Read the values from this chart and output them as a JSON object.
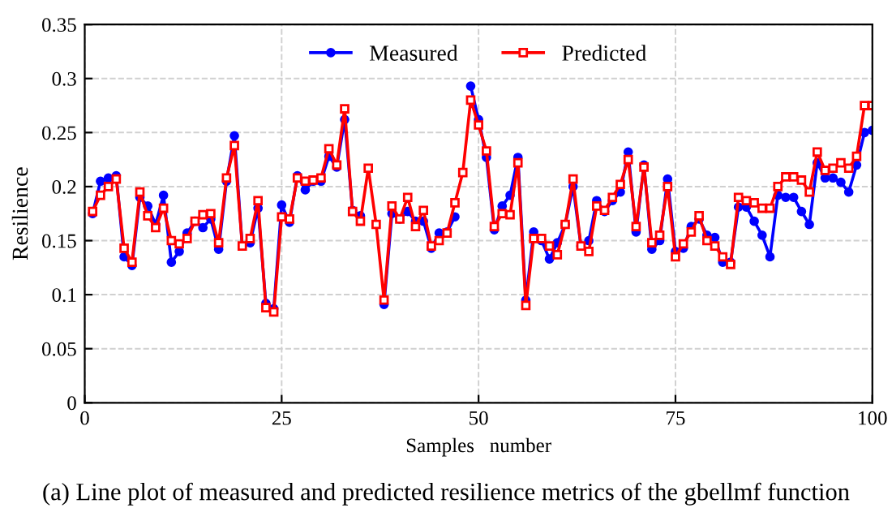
{
  "chart_data": {
    "type": "line",
    "xlabel": "Samples   number",
    "ylabel": "Resilience",
    "x": [
      1,
      2,
      3,
      4,
      5,
      6,
      7,
      8,
      9,
      10,
      11,
      12,
      13,
      14,
      15,
      16,
      17,
      18,
      19,
      20,
      21,
      22,
      23,
      24,
      25,
      26,
      27,
      28,
      29,
      30,
      31,
      32,
      33,
      34,
      35,
      36,
      37,
      38,
      39,
      40,
      41,
      42,
      43,
      44,
      45,
      46,
      47,
      48,
      49,
      50,
      51,
      52,
      53,
      54,
      55,
      56,
      57,
      58,
      59,
      60,
      61,
      62,
      63,
      64,
      65,
      66,
      67,
      68,
      69,
      70,
      71,
      72,
      73,
      74,
      75,
      76,
      77,
      78,
      79,
      80,
      81,
      82,
      83,
      84,
      85,
      86,
      87,
      88,
      89,
      90,
      91,
      92,
      93,
      94,
      95,
      96,
      97,
      98,
      99,
      100
    ],
    "series": [
      {
        "name": "Measured",
        "color": "#0000ff",
        "marker": "circle",
        "values": [
          0.175,
          0.205,
          0.208,
          0.21,
          0.135,
          0.127,
          0.19,
          0.182,
          0.165,
          0.192,
          0.13,
          0.14,
          0.157,
          0.168,
          0.162,
          0.17,
          0.142,
          0.205,
          0.247,
          0.145,
          0.148,
          0.18,
          0.092,
          0.087,
          0.183,
          0.167,
          0.21,
          0.197,
          0.205,
          0.205,
          0.228,
          0.218,
          0.262,
          0.178,
          0.173,
          null,
          null,
          0.091,
          0.175,
          0.17,
          0.177,
          0.168,
          0.168,
          0.143,
          0.157,
          0.158,
          0.172,
          null,
          0.293,
          0.262,
          0.227,
          0.16,
          0.182,
          0.192,
          0.227,
          0.095,
          0.158,
          0.15,
          0.133,
          0.148,
          0.165,
          0.2,
          0.145,
          0.15,
          0.187,
          0.177,
          0.187,
          0.195,
          0.232,
          0.158,
          0.22,
          0.142,
          0.15,
          0.207,
          0.14,
          0.143,
          0.163,
          0.17,
          0.155,
          0.153,
          0.13,
          0.13,
          0.181,
          0.181,
          0.168,
          0.155,
          0.135,
          0.192,
          0.19,
          0.19,
          0.177,
          0.165,
          0.222,
          0.208,
          0.208,
          0.204,
          0.195,
          0.22,
          0.25,
          0.252
        ]
      },
      {
        "name": "Predicted",
        "color": "#ff0000",
        "marker": "square",
        "values": [
          0.177,
          0.192,
          0.2,
          0.207,
          0.143,
          0.13,
          0.195,
          0.173,
          0.162,
          0.18,
          0.15,
          0.147,
          0.152,
          0.168,
          0.174,
          0.175,
          0.148,
          0.208,
          0.238,
          0.145,
          0.152,
          0.187,
          0.088,
          0.084,
          0.172,
          0.17,
          0.208,
          0.205,
          0.206,
          0.208,
          0.235,
          0.22,
          0.272,
          0.177,
          0.168,
          0.217,
          0.165,
          0.095,
          0.182,
          0.17,
          0.19,
          0.163,
          0.178,
          0.145,
          0.15,
          0.157,
          0.185,
          0.213,
          0.28,
          0.257,
          0.233,
          0.163,
          0.175,
          0.174,
          0.222,
          0.09,
          0.152,
          0.152,
          0.145,
          0.137,
          0.165,
          0.207,
          0.145,
          0.14,
          0.182,
          0.178,
          0.19,
          0.202,
          0.225,
          0.163,
          0.218,
          0.148,
          0.155,
          0.2,
          0.135,
          0.147,
          0.158,
          0.173,
          0.15,
          0.145,
          0.135,
          0.128,
          0.19,
          0.187,
          0.185,
          0.18,
          0.18,
          0.2,
          0.209,
          0.209,
          0.206,
          0.195,
          0.232,
          0.215,
          0.217,
          0.222,
          0.217,
          0.228,
          0.275,
          0.275
        ]
      }
    ],
    "xlim": [
      0,
      100
    ],
    "xticks": [
      0,
      25,
      50,
      75,
      100
    ],
    "ylim": [
      0,
      0.35
    ],
    "yticks": [
      0,
      0.05,
      0.1,
      0.15,
      0.2,
      0.25,
      0.3,
      0.35
    ],
    "grid": true,
    "legend": "top",
    "line_style": "solid",
    "annotations": [
      "(a) Line plot of measured and predicted resilience metrics of the gbellmf function"
    ]
  }
}
